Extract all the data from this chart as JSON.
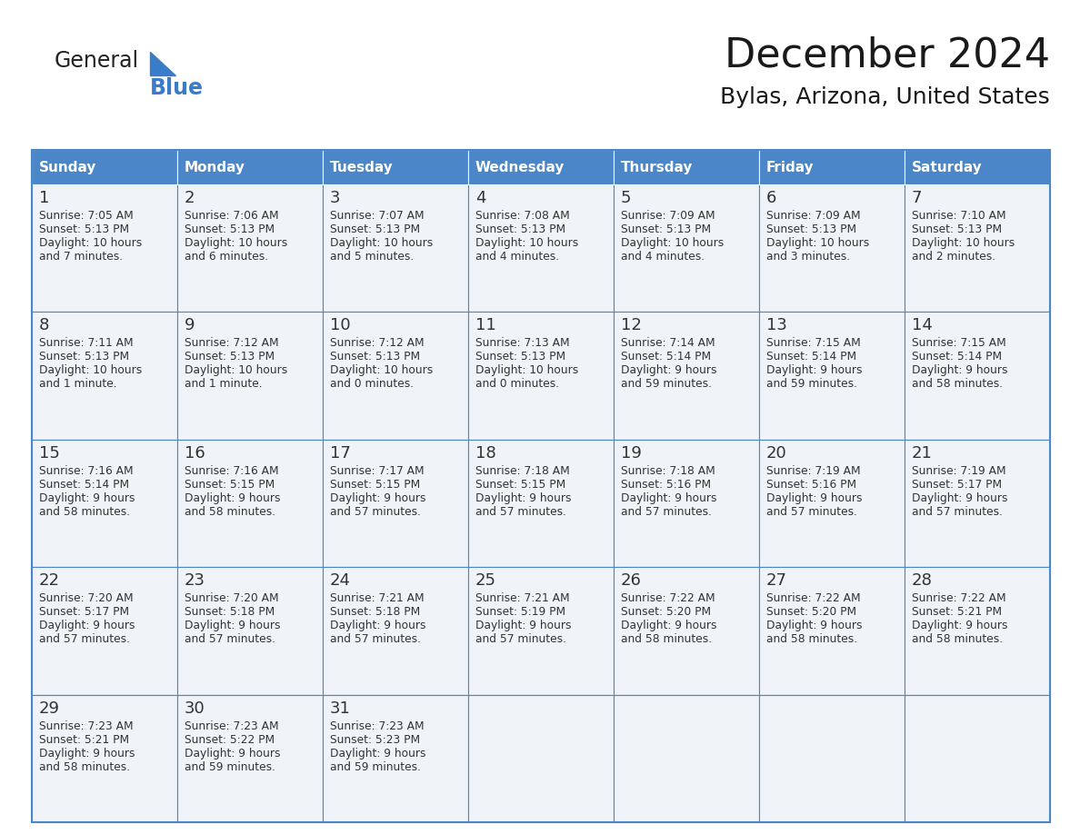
{
  "title": "December 2024",
  "subtitle": "Bylas, Arizona, United States",
  "header_color": "#4a86c8",
  "header_text_color": "#ffffff",
  "cell_bg_color": "#f0f4f8",
  "border_color": "#4a86c8",
  "day_headers": [
    "Sunday",
    "Monday",
    "Tuesday",
    "Wednesday",
    "Thursday",
    "Friday",
    "Saturday"
  ],
  "logo_general_color": "#222222",
  "logo_blue_color": "#3a7cc7",
  "title_fontsize": 32,
  "subtitle_fontsize": 18,
  "days": [
    {
      "day": 1,
      "col": 0,
      "row": 0,
      "sunrise": "7:05 AM",
      "sunset": "5:13 PM",
      "daylight": "10 hours\nand 7 minutes."
    },
    {
      "day": 2,
      "col": 1,
      "row": 0,
      "sunrise": "7:06 AM",
      "sunset": "5:13 PM",
      "daylight": "10 hours\nand 6 minutes."
    },
    {
      "day": 3,
      "col": 2,
      "row": 0,
      "sunrise": "7:07 AM",
      "sunset": "5:13 PM",
      "daylight": "10 hours\nand 5 minutes."
    },
    {
      "day": 4,
      "col": 3,
      "row": 0,
      "sunrise": "7:08 AM",
      "sunset": "5:13 PM",
      "daylight": "10 hours\nand 4 minutes."
    },
    {
      "day": 5,
      "col": 4,
      "row": 0,
      "sunrise": "7:09 AM",
      "sunset": "5:13 PM",
      "daylight": "10 hours\nand 4 minutes."
    },
    {
      "day": 6,
      "col": 5,
      "row": 0,
      "sunrise": "7:09 AM",
      "sunset": "5:13 PM",
      "daylight": "10 hours\nand 3 minutes."
    },
    {
      "day": 7,
      "col": 6,
      "row": 0,
      "sunrise": "7:10 AM",
      "sunset": "5:13 PM",
      "daylight": "10 hours\nand 2 minutes."
    },
    {
      "day": 8,
      "col": 0,
      "row": 1,
      "sunrise": "7:11 AM",
      "sunset": "5:13 PM",
      "daylight": "10 hours\nand 1 minute."
    },
    {
      "day": 9,
      "col": 1,
      "row": 1,
      "sunrise": "7:12 AM",
      "sunset": "5:13 PM",
      "daylight": "10 hours\nand 1 minute."
    },
    {
      "day": 10,
      "col": 2,
      "row": 1,
      "sunrise": "7:12 AM",
      "sunset": "5:13 PM",
      "daylight": "10 hours\nand 0 minutes."
    },
    {
      "day": 11,
      "col": 3,
      "row": 1,
      "sunrise": "7:13 AM",
      "sunset": "5:13 PM",
      "daylight": "10 hours\nand 0 minutes."
    },
    {
      "day": 12,
      "col": 4,
      "row": 1,
      "sunrise": "7:14 AM",
      "sunset": "5:14 PM",
      "daylight": "9 hours\nand 59 minutes."
    },
    {
      "day": 13,
      "col": 5,
      "row": 1,
      "sunrise": "7:15 AM",
      "sunset": "5:14 PM",
      "daylight": "9 hours\nand 59 minutes."
    },
    {
      "day": 14,
      "col": 6,
      "row": 1,
      "sunrise": "7:15 AM",
      "sunset": "5:14 PM",
      "daylight": "9 hours\nand 58 minutes."
    },
    {
      "day": 15,
      "col": 0,
      "row": 2,
      "sunrise": "7:16 AM",
      "sunset": "5:14 PM",
      "daylight": "9 hours\nand 58 minutes."
    },
    {
      "day": 16,
      "col": 1,
      "row": 2,
      "sunrise": "7:16 AM",
      "sunset": "5:15 PM",
      "daylight": "9 hours\nand 58 minutes."
    },
    {
      "day": 17,
      "col": 2,
      "row": 2,
      "sunrise": "7:17 AM",
      "sunset": "5:15 PM",
      "daylight": "9 hours\nand 57 minutes."
    },
    {
      "day": 18,
      "col": 3,
      "row": 2,
      "sunrise": "7:18 AM",
      "sunset": "5:15 PM",
      "daylight": "9 hours\nand 57 minutes."
    },
    {
      "day": 19,
      "col": 4,
      "row": 2,
      "sunrise": "7:18 AM",
      "sunset": "5:16 PM",
      "daylight": "9 hours\nand 57 minutes."
    },
    {
      "day": 20,
      "col": 5,
      "row": 2,
      "sunrise": "7:19 AM",
      "sunset": "5:16 PM",
      "daylight": "9 hours\nand 57 minutes."
    },
    {
      "day": 21,
      "col": 6,
      "row": 2,
      "sunrise": "7:19 AM",
      "sunset": "5:17 PM",
      "daylight": "9 hours\nand 57 minutes."
    },
    {
      "day": 22,
      "col": 0,
      "row": 3,
      "sunrise": "7:20 AM",
      "sunset": "5:17 PM",
      "daylight": "9 hours\nand 57 minutes."
    },
    {
      "day": 23,
      "col": 1,
      "row": 3,
      "sunrise": "7:20 AM",
      "sunset": "5:18 PM",
      "daylight": "9 hours\nand 57 minutes."
    },
    {
      "day": 24,
      "col": 2,
      "row": 3,
      "sunrise": "7:21 AM",
      "sunset": "5:18 PM",
      "daylight": "9 hours\nand 57 minutes."
    },
    {
      "day": 25,
      "col": 3,
      "row": 3,
      "sunrise": "7:21 AM",
      "sunset": "5:19 PM",
      "daylight": "9 hours\nand 57 minutes."
    },
    {
      "day": 26,
      "col": 4,
      "row": 3,
      "sunrise": "7:22 AM",
      "sunset": "5:20 PM",
      "daylight": "9 hours\nand 58 minutes."
    },
    {
      "day": 27,
      "col": 5,
      "row": 3,
      "sunrise": "7:22 AM",
      "sunset": "5:20 PM",
      "daylight": "9 hours\nand 58 minutes."
    },
    {
      "day": 28,
      "col": 6,
      "row": 3,
      "sunrise": "7:22 AM",
      "sunset": "5:21 PM",
      "daylight": "9 hours\nand 58 minutes."
    },
    {
      "day": 29,
      "col": 0,
      "row": 4,
      "sunrise": "7:23 AM",
      "sunset": "5:21 PM",
      "daylight": "9 hours\nand 58 minutes."
    },
    {
      "day": 30,
      "col": 1,
      "row": 4,
      "sunrise": "7:23 AM",
      "sunset": "5:22 PM",
      "daylight": "9 hours\nand 59 minutes."
    },
    {
      "day": 31,
      "col": 2,
      "row": 4,
      "sunrise": "7:23 AM",
      "sunset": "5:23 PM",
      "daylight": "9 hours\nand 59 minutes."
    }
  ]
}
